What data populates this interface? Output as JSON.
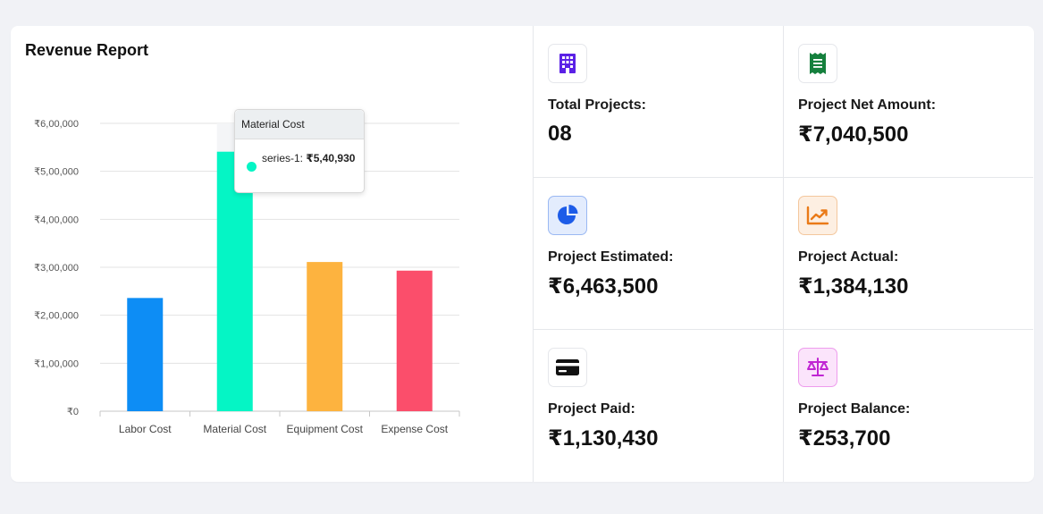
{
  "chart_panel": {
    "title": "Revenue Report"
  },
  "chart_data": {
    "type": "bar",
    "categories": [
      "Labor Cost",
      "Material Cost",
      "Equipment Cost",
      "Expense Cost"
    ],
    "series": [
      {
        "name": "series-1",
        "values": [
          236000,
          540930,
          311000,
          293000
        ]
      }
    ],
    "colors": [
      "#0d8df5",
      "#05f5c5",
      "#fdb33f",
      "#fb4e6b"
    ],
    "ylim": [
      0,
      600000
    ],
    "yticks": [
      0,
      100000,
      200000,
      300000,
      400000,
      500000,
      600000
    ],
    "ytick_labels": [
      "₹0",
      "₹1,00,000",
      "₹2,00,000",
      "₹3,00,000",
      "₹4,00,000",
      "₹5,00,000",
      "₹6,00,000"
    ],
    "grid": true,
    "hover_index": 1,
    "tooltip": {
      "title": "Material Cost",
      "series_label": "series-1:",
      "value": "₹5,40,930"
    }
  },
  "stats": [
    {
      "label": "Total Projects:",
      "value": "08",
      "icon": "building-icon",
      "icon_color": "#5b21e6",
      "icon_bg": "#ffffff",
      "icon_border": "#e5e7eb"
    },
    {
      "label": "Project Net Amount:",
      "value": "₹7,040,500",
      "icon": "receipt-icon",
      "icon_color": "#15803d",
      "icon_bg": "#ffffff",
      "icon_border": "#e5e7eb"
    },
    {
      "label": "Project Estimated:",
      "value": "₹6,463,500",
      "icon": "pie-chart-icon",
      "icon_color": "#1d5ce8",
      "icon_bg": "#e3ecfd",
      "icon_border": "#9ab8f3"
    },
    {
      "label": "Project Actual:",
      "value": "₹1,384,130",
      "icon": "trend-chart-icon",
      "icon_color": "#ea7a17",
      "icon_bg": "#fdefe2",
      "icon_border": "#f4c79d"
    },
    {
      "label": "Project Paid:",
      "value": "₹1,130,430",
      "icon": "credit-card-icon",
      "icon_color": "#111111",
      "icon_bg": "#ffffff",
      "icon_border": "#e5e7eb"
    },
    {
      "label": "Project Balance:",
      "value": "₹253,700",
      "icon": "scale-icon",
      "icon_color": "#c026d3",
      "icon_bg": "#fbe4fb",
      "icon_border": "#ee9ced"
    }
  ]
}
